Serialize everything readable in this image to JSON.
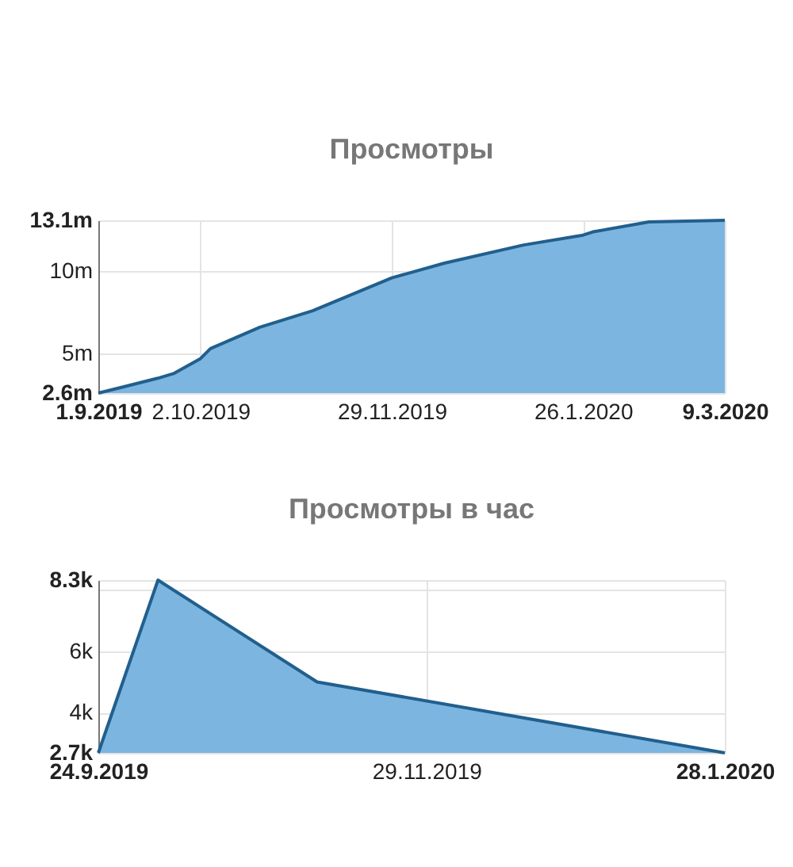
{
  "chart_data": [
    {
      "type": "area",
      "title": "Просмотры",
      "x": [
        "2019-09-01",
        "2019-09-09",
        "2019-09-19",
        "2019-09-24",
        "2019-10-02",
        "2019-10-05",
        "2019-10-20",
        "2019-11-05",
        "2019-11-29",
        "2019-12-15",
        "2020-01-08",
        "2020-01-26",
        "2020-01-29",
        "2020-02-15",
        "2020-03-09"
      ],
      "series": [
        {
          "color": "#7cb5e0",
          "values": [
            2.6,
            3.0,
            3.5,
            3.8,
            4.7,
            5.3,
            6.6,
            7.6,
            9.6,
            10.5,
            11.6,
            12.2,
            12.4,
            13.0,
            13.1
          ]
        }
      ],
      "xlim": [
        "2019-09-01",
        "2020-03-09"
      ],
      "xticks": [
        {
          "value": "2019-09-01",
          "label": "1.9.2019"
        },
        {
          "value": "2019-10-02",
          "label": "2.10.2019"
        },
        {
          "value": "2019-11-29",
          "label": "29.11.2019"
        },
        {
          "value": "2020-01-26",
          "label": "26.1.2020"
        },
        {
          "value": "2020-03-09",
          "label": "9.3.2020"
        }
      ],
      "ylim": [
        2.6,
        13.1
      ],
      "yticks": [
        {
          "value": 2.6,
          "label": "2.6m"
        },
        {
          "value": 5,
          "label": "5m"
        },
        {
          "value": 10,
          "label": "10m"
        },
        {
          "value": 13.1,
          "label": "13.1m"
        }
      ],
      "grid": true
    },
    {
      "type": "area",
      "title": "Просмотры в час",
      "x": [
        "2019-09-24",
        "2019-10-06",
        "2019-11-07",
        "2020-01-28"
      ],
      "series": [
        {
          "color": "#7cb5e0",
          "values": [
            2.7,
            8.3,
            5.0,
            2.7
          ]
        }
      ],
      "xlim": [
        "2019-09-24",
        "2020-01-28"
      ],
      "xticks": [
        {
          "value": "2019-09-24",
          "label": "24.9.2019"
        },
        {
          "value": "2019-11-29",
          "label": "29.11.2019"
        },
        {
          "value": "2020-01-28",
          "label": "28.1.2020"
        }
      ],
      "ylim": [
        2.7,
        8.3
      ],
      "yticks": [
        {
          "value": 2.7,
          "label": "2.7k"
        },
        {
          "value": 4,
          "label": "4k"
        },
        {
          "value": 6,
          "label": "6k"
        },
        {
          "value": 8,
          "label": null
        },
        {
          "value": 8.3,
          "label": "8.3k"
        }
      ],
      "grid": true
    }
  ]
}
